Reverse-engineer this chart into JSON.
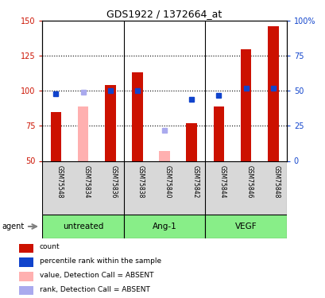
{
  "title": "GDS1922 / 1372664_at",
  "samples": [
    "GSM75548",
    "GSM75834",
    "GSM75836",
    "GSM75838",
    "GSM75840",
    "GSM75842",
    "GSM75844",
    "GSM75846",
    "GSM75848"
  ],
  "red_values": [
    85,
    null,
    104,
    113,
    null,
    77,
    89,
    130,
    146
  ],
  "pink_values": [
    null,
    89,
    null,
    null,
    57,
    null,
    null,
    null,
    null
  ],
  "blue_values": [
    48,
    null,
    50,
    50,
    null,
    44,
    47,
    52,
    52
  ],
  "lightblue_values": [
    null,
    49,
    null,
    null,
    22,
    null,
    null,
    null,
    null
  ],
  "ylim": [
    50,
    150
  ],
  "yticks": [
    50,
    75,
    100,
    125,
    150
  ],
  "right_yticks": [
    0,
    25,
    50,
    75,
    100
  ],
  "right_yticklabels": [
    "0",
    "25",
    "50",
    "75",
    "100%"
  ],
  "bar_color": "#cc1100",
  "pink_color": "#ffb0b0",
  "blue_color": "#1144cc",
  "lightblue_color": "#aaaaee",
  "bar_width": 0.4,
  "marker_size": 5,
  "bg_color": "#d8d8d8",
  "group_color": "#88ee88",
  "groups": [
    {
      "label": "untreated",
      "start": 0,
      "end": 2
    },
    {
      "label": "Ang-1",
      "start": 3,
      "end": 5
    },
    {
      "label": "VEGF",
      "start": 6,
      "end": 8
    }
  ],
  "legend_items": [
    {
      "label": "count",
      "color": "#cc1100"
    },
    {
      "label": "percentile rank within the sample",
      "color": "#1144cc"
    },
    {
      "label": "value, Detection Call = ABSENT",
      "color": "#ffb0b0"
    },
    {
      "label": "rank, Detection Call = ABSENT",
      "color": "#aaaaee"
    }
  ],
  "hlines": [
    75,
    100,
    125
  ],
  "vsep": [
    2.5,
    5.5
  ]
}
